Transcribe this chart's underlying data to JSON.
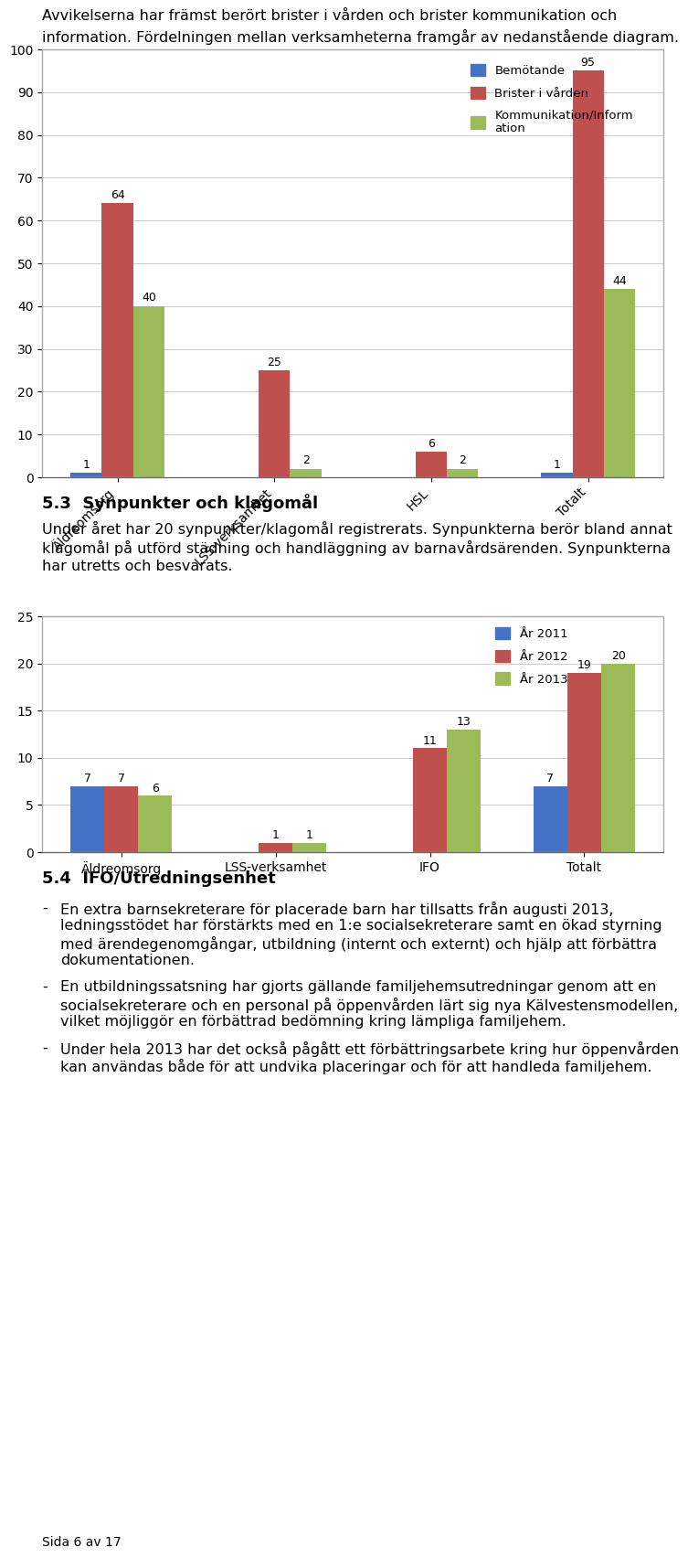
{
  "page_bg": "#ffffff",
  "chart1": {
    "categories": [
      "Äldreomsorg",
      "LSS-verksamhet",
      "HSL",
      "Totalt"
    ],
    "series": [
      {
        "label": "Bemötande",
        "color": "#4472c4",
        "values": [
          1,
          0,
          0,
          1
        ]
      },
      {
        "label": "Brister i vården",
        "color": "#c0504d",
        "values": [
          64,
          25,
          6,
          95
        ]
      },
      {
        "label": "Kommunikation/Inform\nation",
        "color": "#9bbb59",
        "values": [
          40,
          2,
          2,
          44
        ]
      }
    ],
    "ylim": [
      0,
      100
    ],
    "yticks": [
      0,
      10,
      20,
      30,
      40,
      50,
      60,
      70,
      80,
      90,
      100
    ]
  },
  "chart2": {
    "categories": [
      "Äldreomsorg",
      "LSS-verksamhet",
      "IFO",
      "Totalt"
    ],
    "series": [
      {
        "label": "År 2011",
        "color": "#4472c4",
        "values": [
          7,
          0,
          0,
          7
        ]
      },
      {
        "label": "År 2012",
        "color": "#c0504d",
        "values": [
          7,
          1,
          11,
          19
        ]
      },
      {
        "label": "År 2013",
        "color": "#9bbb59",
        "values": [
          6,
          1,
          13,
          20
        ]
      }
    ],
    "ylim": [
      0,
      25
    ],
    "yticks": [
      0,
      5,
      10,
      15,
      20,
      25
    ]
  },
  "header_lines": [
    "Avvikelserna har främst berört brister i vården och brister kommunikation och",
    "information. Fördelningen mellan verksamheterna framgår av nedanstående diagram."
  ],
  "section1_title": "5.3  Synpunkter och klagomål",
  "section1_body": [
    "Under året har 20 synpunkter/klagomål registrerats. Synpunkterna berör bland annat",
    "klagomål på utförd städning och handläggning av barnavårdsärenden. Synpunkterna",
    "har utretts och besvarats."
  ],
  "section2_title": "5.4  IFO/Utredningsenhet",
  "section2_bullets": [
    [
      "En extra barnsekreterare för placerade barn har tillsatts från augusti 2013,",
      "ledningsstödet har förstärkts med en 1:e socialsekreterare samt en ökad styrning",
      "med ärendegenomgångar, utbildning (internt och externt) och hjälp att förbättra",
      "dokumentationen."
    ],
    [
      "En utbildningssatsning har gjorts gällande familjehemsutredningar genom att en",
      "socialsekreterare och en personal på öppenvården lärt sig nya Kälvestensmodellen,",
      "vilket möjliggör en förbättrad bedömning kring lämpliga familjehem."
    ],
    [
      "Under hela 2013 har det också pågått ett förbättringsarbete kring hur öppenvården",
      "kan användas både för att undvika placeringar och för att handleda familjehem."
    ]
  ],
  "footer": "Sida 6 av 17"
}
